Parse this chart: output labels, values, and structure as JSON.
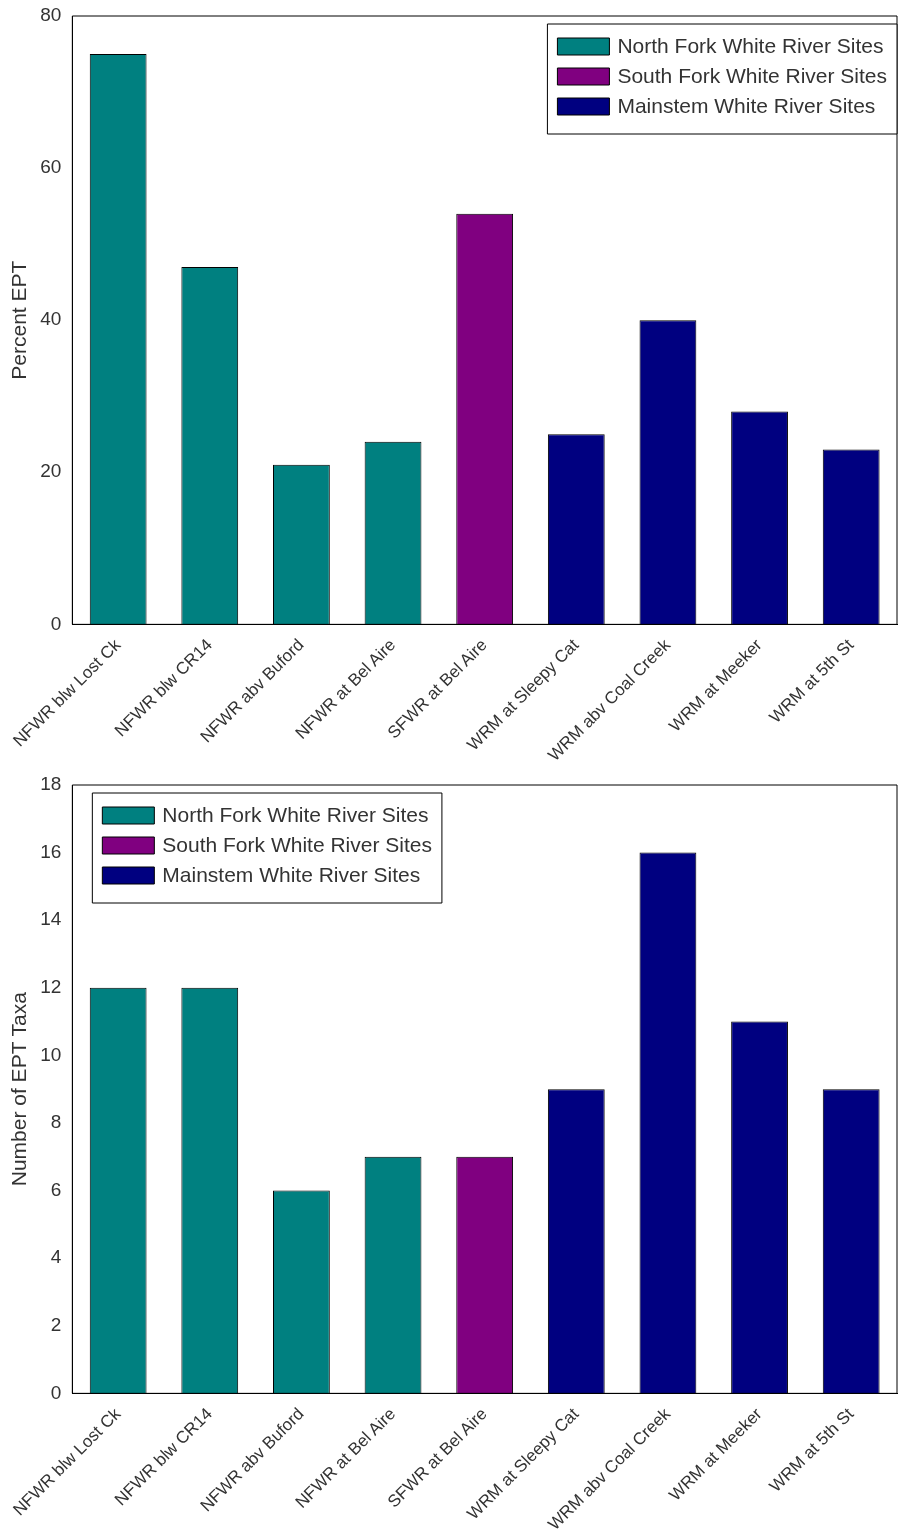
{
  "chart_data": [
    {
      "type": "bar",
      "ylabel": "Percent EPT",
      "categories": [
        "NFWR blw Lost Ck",
        "NFWR blw CR14",
        "NFWR abv Buford",
        "NFWR at Bel Aire",
        "SFWR at Bel Aire",
        "WRM at Sleepy Cat",
        "WRM abv Coal Creek",
        "WRM at Meeker",
        "WRM at 5th St"
      ],
      "series": [
        {
          "name": "North Fork White River Sites",
          "color": "#008080",
          "values": [
            75,
            47,
            21,
            24,
            null,
            null,
            null,
            null,
            null
          ]
        },
        {
          "name": "South Fork White River Sites",
          "color": "#800080",
          "values": [
            null,
            null,
            null,
            null,
            54,
            null,
            null,
            null,
            null
          ]
        },
        {
          "name": "Mainstem White River Sites",
          "color": "#000080",
          "values": [
            null,
            null,
            null,
            null,
            null,
            25,
            40,
            28,
            23
          ]
        }
      ],
      "ylim": [
        0,
        80
      ],
      "yticks": [
        0,
        20,
        40,
        60,
        80
      ],
      "legend": "top right"
    },
    {
      "type": "bar",
      "ylabel": "Number of EPT Taxa",
      "categories": [
        "NFWR blw Lost Ck",
        "NFWR blw CR14",
        "NFWR abv Buford",
        "NFWR at Bel Aire",
        "SFWR at Bel Aire",
        "WRM at Sleepy Cat",
        "WRM abv Coal Creek",
        "WRM at Meeker",
        "WRM at 5th St"
      ],
      "series": [
        {
          "name": "North Fork White River Sites",
          "color": "#008080",
          "values": [
            12,
            12,
            6,
            7,
            null,
            null,
            null,
            null,
            null
          ]
        },
        {
          "name": "South Fork White River Sites",
          "color": "#800080",
          "values": [
            null,
            null,
            null,
            null,
            7,
            null,
            null,
            null,
            null
          ]
        },
        {
          "name": "Mainstem White River Sites",
          "color": "#000080",
          "values": [
            null,
            null,
            null,
            null,
            null,
            9,
            16,
            11,
            9
          ]
        }
      ],
      "ylim": [
        0,
        18
      ],
      "yticks": [
        0,
        2,
        4,
        6,
        8,
        10,
        12,
        14,
        16,
        18
      ],
      "legend": "top left"
    }
  ]
}
